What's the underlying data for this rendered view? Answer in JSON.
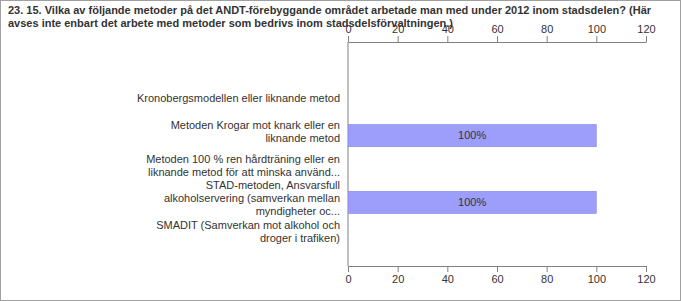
{
  "chart_data": {
    "type": "bar",
    "orientation": "horizontal",
    "title": "23. 15. Vilka av följande metoder på det ANDT-förebyggande området arbetade man med under 2012 inom stadsdelen? (Här avses inte enbart det arbete med metoder som bedrivs inom stadsdelsförvaltningen.)",
    "categories": [
      "Kronobergsmodellen eller liknande metod",
      "Metoden Krogar mot knark eller en liknande metod",
      "Metoden 100 % ren hårdträning eller en liknande metod för att minska använd...",
      "STAD-metoden, Ansvarsfull alkoholservering (samverkan mellan myndigheter oc...",
      "SMADIT (Samverkan mot alkohol och droger i trafiken)"
    ],
    "values": [
      0,
      100,
      0,
      100,
      0
    ],
    "value_labels": [
      null,
      "100%",
      null,
      "100%",
      null
    ],
    "data_labels": true,
    "color": "#9d9dfc",
    "xlim": [
      0,
      120
    ],
    "xticks": [
      0,
      20,
      40,
      60,
      80,
      100,
      120
    ],
    "grid": false
  }
}
